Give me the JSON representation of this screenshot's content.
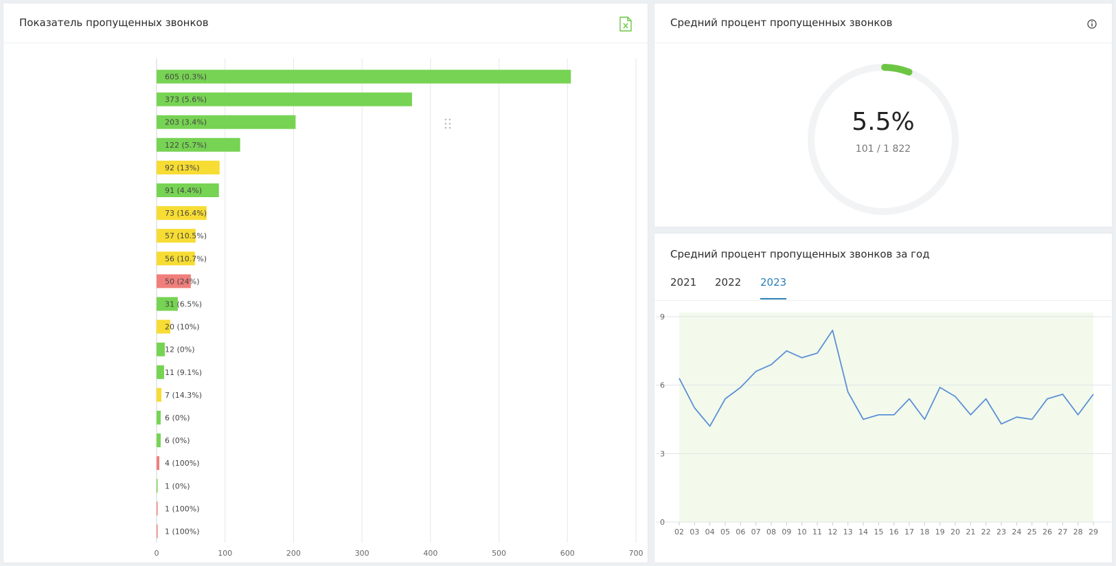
{
  "left_panel": {
    "title": "Показатель пропущенных звонков",
    "export_icon": "excel-file-icon",
    "drag_icon": "drag-handle-icon"
  },
  "gauge_panel": {
    "title": "Средний процент пропущенных звонков",
    "info_icon": "info-icon",
    "value_text": "5.5%",
    "sub_text": "101 / 1 822",
    "fraction": 0.055,
    "colors": {
      "arc": "#6cc644",
      "track": "#f2f3f4"
    }
  },
  "year_panel": {
    "title": "Средний процент пропущенных звонков за год",
    "tabs": [
      "2021",
      "2022",
      "2023"
    ],
    "active_tab": "2023"
  },
  "colors": {
    "green": "#77d353",
    "yellow": "#f7dc33",
    "red": "#f07f7b",
    "line": "#5b8fd6",
    "line_area": "#f3faec",
    "accent": "#2a7fb8"
  },
  "chart_data": [
    {
      "type": "bar",
      "orientation": "horizontal",
      "categories": [
        "",
        "",
        "",
        "",
        "",
        "",
        "",
        "",
        "",
        "",
        "",
        "",
        "",
        "",
        "",
        "",
        "",
        "",
        "",
        "",
        ""
      ],
      "values": [
        605,
        373,
        203,
        122,
        92,
        91,
        73,
        57,
        56,
        50,
        31,
        20,
        12,
        11,
        7,
        6,
        6,
        4,
        1,
        1,
        1
      ],
      "data_labels": [
        "605 (0.3%)",
        "373 (5.6%)",
        "203 (3.4%)",
        "122 (5.7%)",
        "92 (13%)",
        "91 (4.4%)",
        "73 (16.4%)",
        "57 (10.5%)",
        "56 (10.7%)",
        "50 (24%)",
        "31 (6.5%)",
        "20 (10%)",
        "12 (0%)",
        "11 (9.1%)",
        "7 (14.3%)",
        "6 (0%)",
        "6 (0%)",
        "4 (100%)",
        "1 (0%)",
        "1 (100%)",
        "1 (100%)"
      ],
      "status": [
        "green",
        "green",
        "green",
        "green",
        "yellow",
        "green",
        "yellow",
        "yellow",
        "yellow",
        "red",
        "green",
        "yellow",
        "green",
        "green",
        "yellow",
        "green",
        "green",
        "red",
        "green",
        "red",
        "red"
      ],
      "x_ticks": [
        "0",
        "100",
        "200",
        "300",
        "400",
        "500",
        "600",
        "700"
      ],
      "xlim": [
        0,
        700
      ],
      "grid": true
    },
    {
      "type": "line",
      "x": [
        "02",
        "03",
        "04",
        "05",
        "06",
        "07",
        "08",
        "09",
        "10",
        "11",
        "12",
        "13",
        "14",
        "15",
        "16",
        "17",
        "18",
        "19",
        "20",
        "21",
        "22",
        "23",
        "24",
        "25",
        "26",
        "27",
        "28",
        "29"
      ],
      "values": [
        6.3,
        5.0,
        4.2,
        5.4,
        5.9,
        6.6,
        6.9,
        7.5,
        7.2,
        7.4,
        8.4,
        5.7,
        4.5,
        4.7,
        4.7,
        5.4,
        4.5,
        5.9,
        5.5,
        4.7,
        5.4,
        4.3,
        4.6,
        4.5,
        5.4,
        5.6,
        4.7,
        5.6
      ],
      "y_ticks": [
        "0",
        "3",
        "6",
        "9"
      ],
      "ylim": [
        0,
        9
      ],
      "grid": true
    }
  ]
}
